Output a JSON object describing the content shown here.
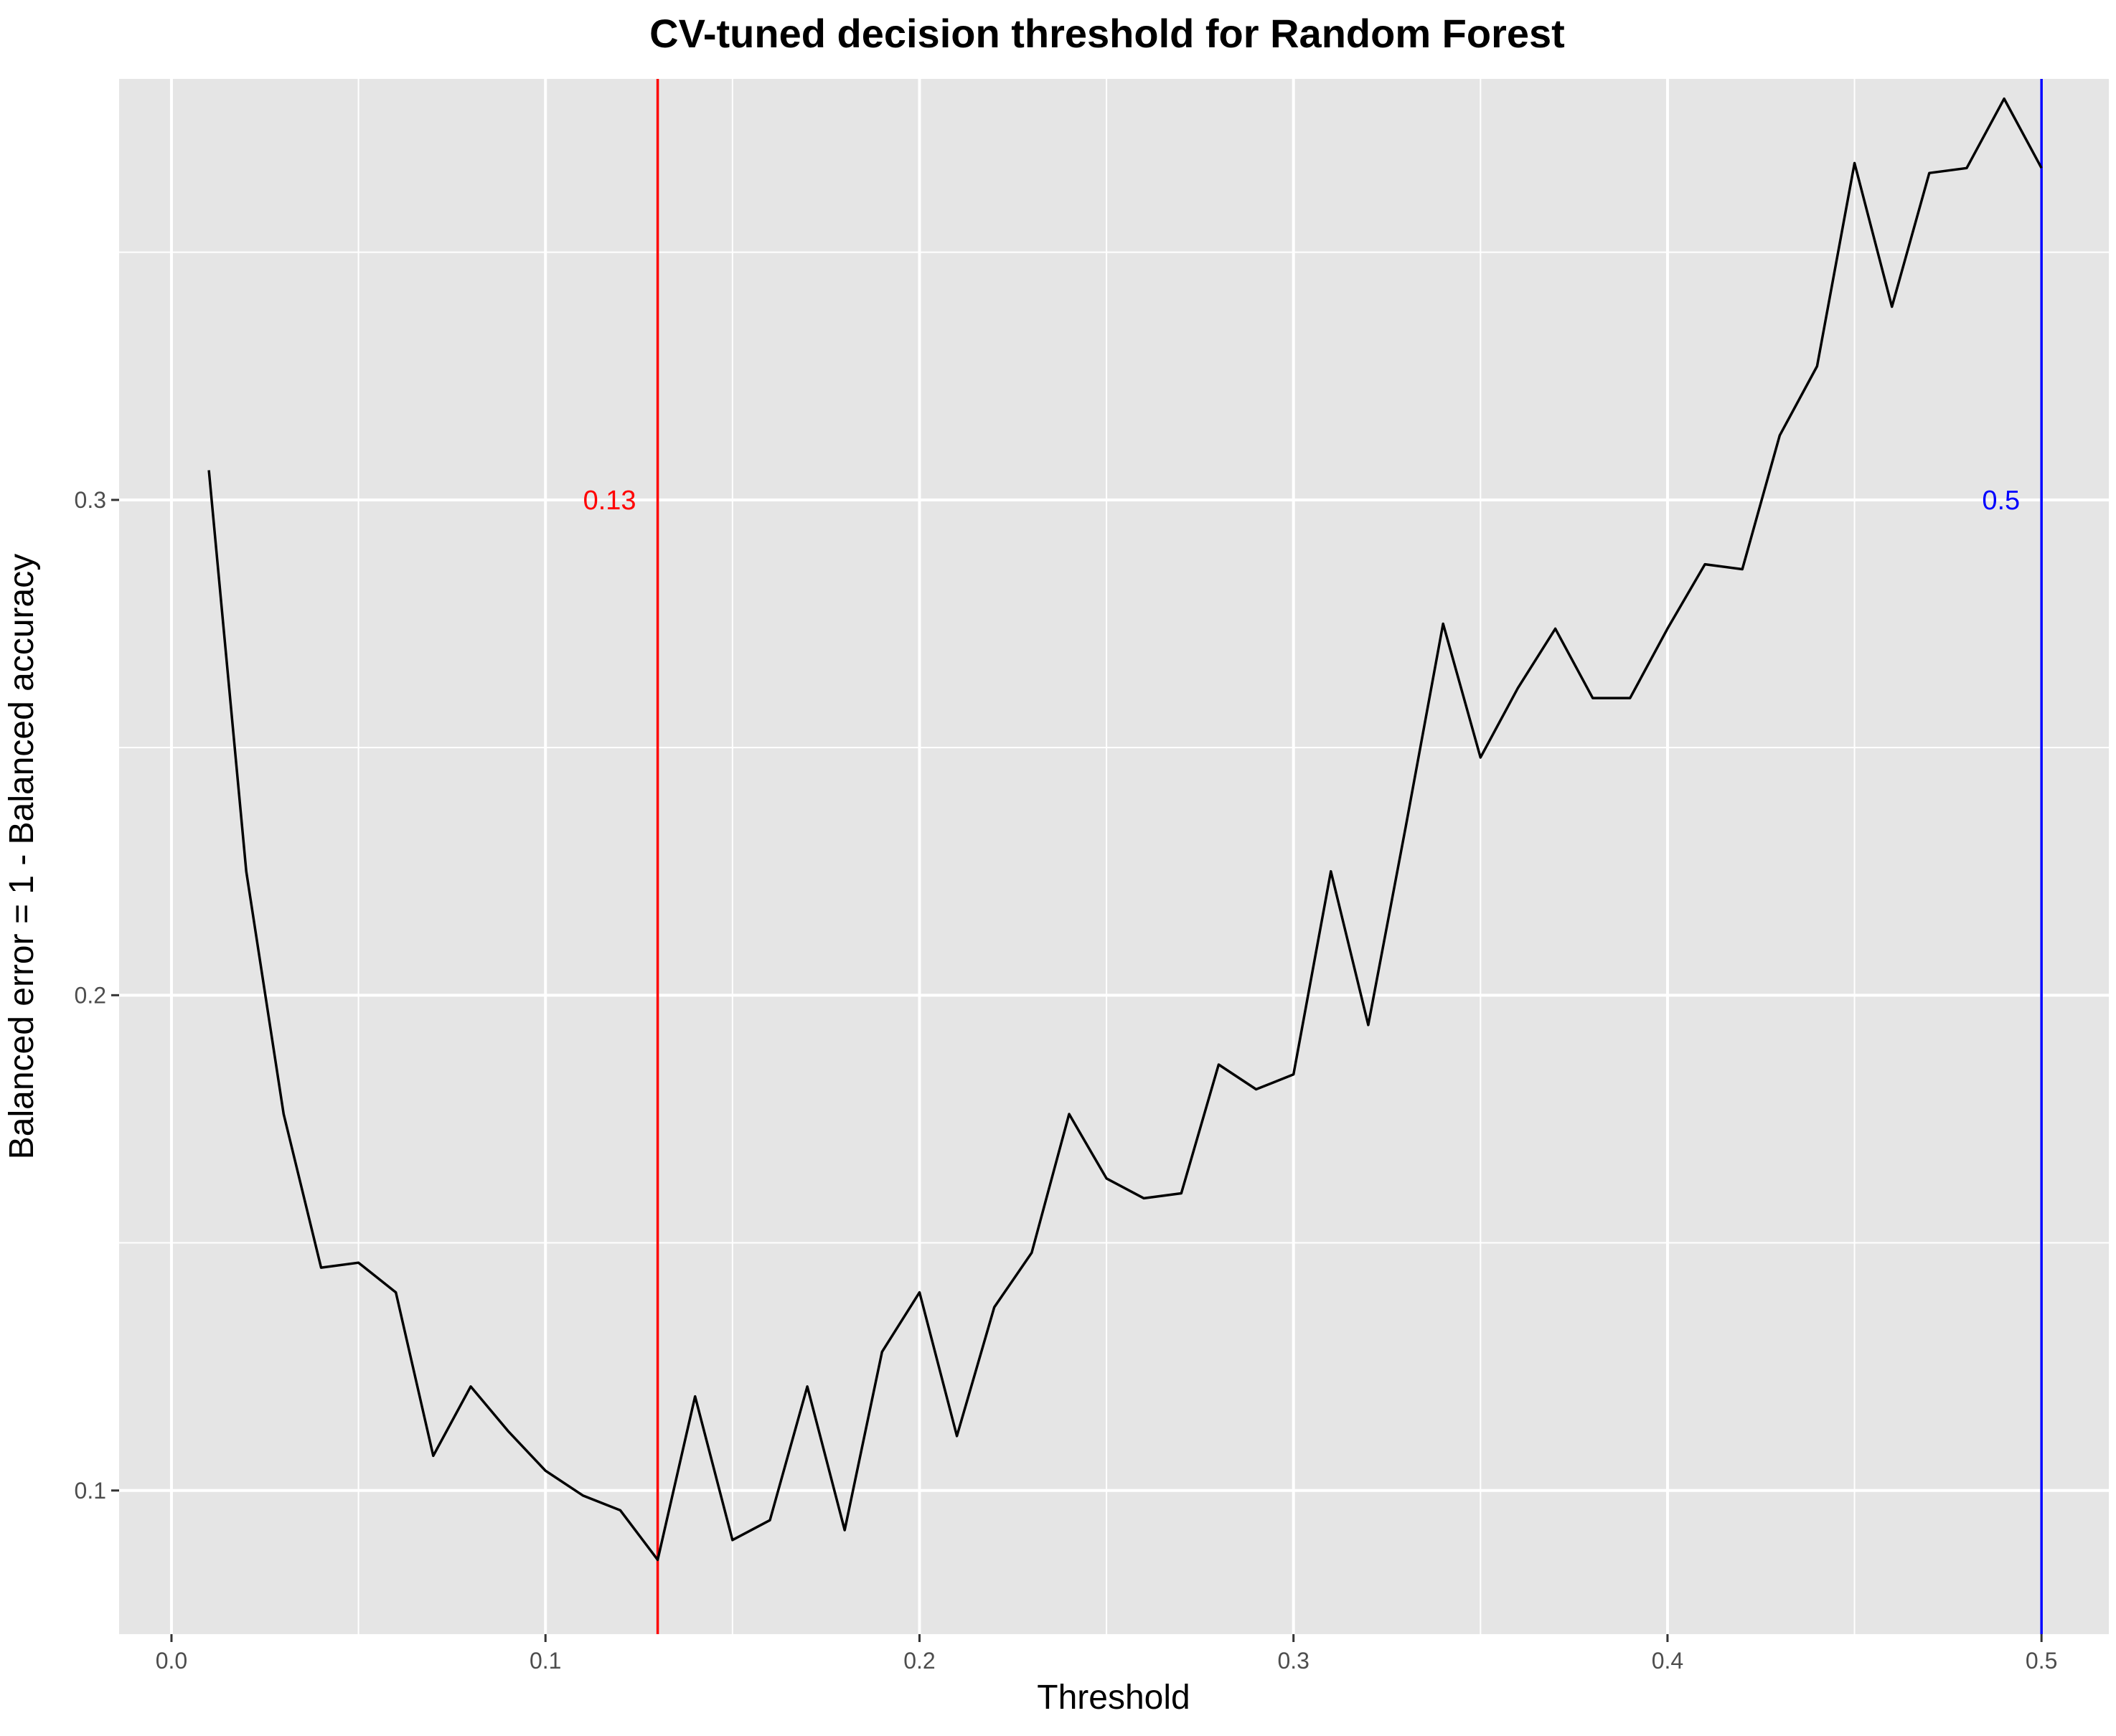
{
  "chart_data": {
    "type": "line",
    "title": "CV-tuned decision threshold for Random Forest",
    "xlabel": "Threshold",
    "ylabel": "Balanced error = 1 - Balanced accuracy",
    "xlim": [
      -0.014,
      0.518
    ],
    "ylim": [
      0.071,
      0.385
    ],
    "x_ticks": [
      0.0,
      0.1,
      0.2,
      0.3,
      0.4,
      0.5
    ],
    "x_tick_labels": [
      "0.0",
      "0.1",
      "0.2",
      "0.3",
      "0.4",
      "0.5"
    ],
    "y_ticks": [
      0.1,
      0.2,
      0.3
    ],
    "y_tick_labels": [
      "0.1",
      "0.2",
      "0.3"
    ],
    "grid": true,
    "background": "#e5e5e5",
    "line_color": "#000000",
    "series": [
      {
        "x": [
          0.01,
          0.02,
          0.03,
          0.04,
          0.05,
          0.06,
          0.07,
          0.08,
          0.09,
          0.1,
          0.11,
          0.12,
          0.13,
          0.14,
          0.15,
          0.16,
          0.17,
          0.18,
          0.19,
          0.2,
          0.21,
          0.22,
          0.23,
          0.24,
          0.25,
          0.26,
          0.27,
          0.28,
          0.29,
          0.3,
          0.31,
          0.32,
          0.33,
          0.34,
          0.35,
          0.36,
          0.37,
          0.38,
          0.39,
          0.4,
          0.41,
          0.42,
          0.43,
          0.44,
          0.45,
          0.46,
          0.47,
          0.48,
          0.49,
          0.5
        ],
        "y": [
          0.306,
          0.225,
          0.176,
          0.145,
          0.146,
          0.14,
          0.107,
          0.121,
          0.112,
          0.104,
          0.099,
          0.096,
          0.086,
          0.119,
          0.09,
          0.094,
          0.121,
          0.092,
          0.128,
          0.14,
          0.111,
          0.137,
          0.148,
          0.176,
          0.163,
          0.159,
          0.16,
          0.186,
          0.181,
          0.184,
          0.225,
          0.194,
          0.234,
          0.275,
          0.248,
          0.262,
          0.274,
          0.26,
          0.26,
          0.274,
          0.287,
          0.286,
          0.313,
          0.327,
          0.368,
          0.339,
          0.366,
          0.367,
          0.381,
          0.367
        ]
      }
    ],
    "annotations": [
      {
        "type": "vline",
        "x": 0.13,
        "color": "#ff0000",
        "label": "0.13",
        "label_y": 0.3
      },
      {
        "type": "vline",
        "x": 0.5,
        "color": "#0000ff",
        "label": "0.5",
        "label_y": 0.3
      }
    ]
  }
}
